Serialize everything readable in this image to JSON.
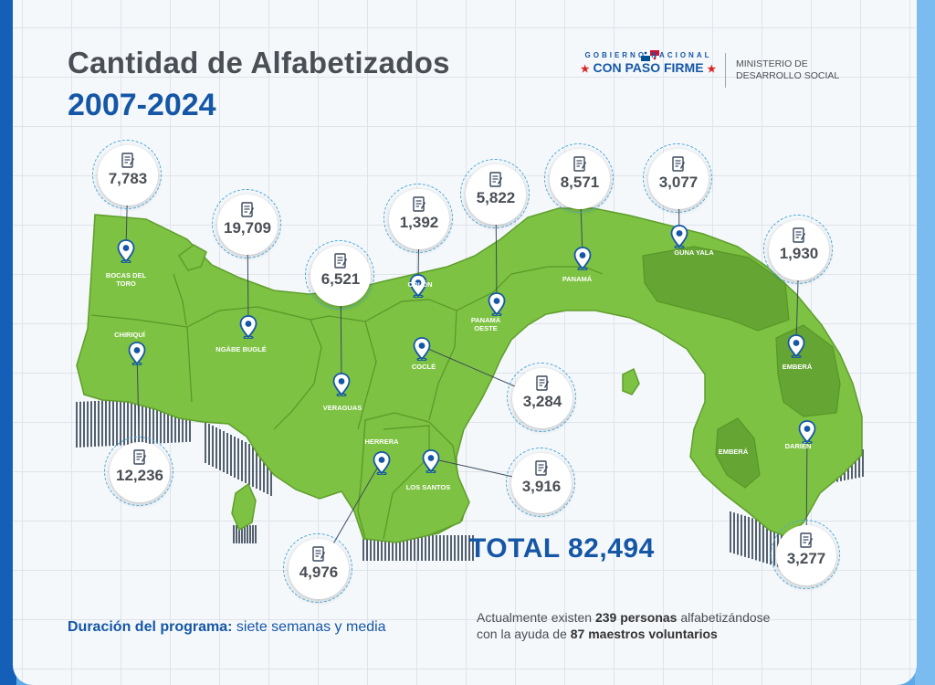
{
  "title": "Cantidad de Alfabetizados",
  "subtitle": "2007-2024",
  "header": {
    "gov_top": "GOBIERNO NACIONAL",
    "gov_main": "CON PASO FIRME",
    "ministry_line1": "MINISTERIO DE",
    "ministry_line2": "DESARROLLO SOCIAL"
  },
  "regions": [
    {
      "label_lines": [
        "BOCAS DEL",
        "TORO"
      ],
      "value": "7,783"
    },
    {
      "label_lines": [
        "NGÄBE BUGLÉ"
      ],
      "value": "19,709"
    },
    {
      "label_lines": [
        "CHIRIQUÍ"
      ],
      "value": "12,236"
    },
    {
      "label_lines": [
        "VERAGUAS"
      ],
      "value": "6,521"
    },
    {
      "label_lines": [
        "COLÓN"
      ],
      "value": "1,392"
    },
    {
      "label_lines": [
        "PANAMÁ",
        "OESTE"
      ],
      "value": "5,822"
    },
    {
      "label_lines": [
        "PANAMÁ"
      ],
      "value": "8,571"
    },
    {
      "label_lines": [
        "GUNA YALA"
      ],
      "value": "3,077"
    },
    {
      "label_lines": [
        "EMBERÁ"
      ],
      "value": "1,930"
    },
    {
      "label_lines": [
        "COCLÉ"
      ],
      "value": "3,284"
    },
    {
      "label_lines": [
        "HERRERA"
      ],
      "value": "4,976"
    },
    {
      "label_lines": [
        "LOS SANTOS"
      ],
      "value": "3,916"
    },
    {
      "label_lines": [
        "DARIÉN"
      ],
      "value": "3,277"
    },
    {
      "label_lines": [
        "EMBERÁ"
      ],
      "value": ""
    }
  ],
  "total": "TOTAL 82,494",
  "footer": {
    "duration_label": "Duración del programa:",
    "duration_value": " siete semanas y media",
    "current_line1_a": "Actualmente existen ",
    "current_line1_b": "239 personas",
    "current_line1_c": " alfabetizándose",
    "current_line2_a": "con la ayuda de ",
    "current_line2_b": "87 maestros voluntarios"
  },
  "colors": {
    "land": "#7dc242",
    "border": "#5f9e2c",
    "dark_land": "#64a533",
    "accent": "#1557a6",
    "ring": "#4aa8d8"
  }
}
